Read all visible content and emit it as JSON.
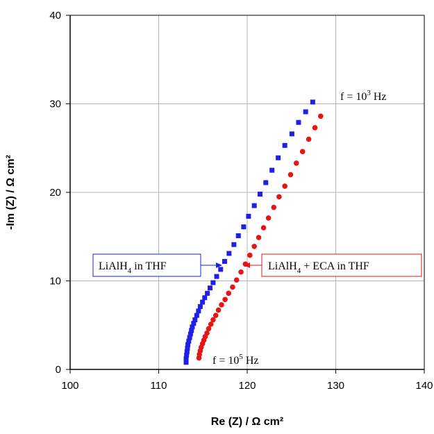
{
  "chart_data": {
    "type": "scatter",
    "xlabel": "Re (Z) / Ω cm²",
    "ylabel": "-Im (Z) / Ω cm²",
    "xlim": [
      100,
      140
    ],
    "ylim": [
      0,
      40
    ],
    "x_ticks": [
      "100",
      "110",
      "120",
      "130",
      "140"
    ],
    "y_ticks": [
      "0",
      "10",
      "20",
      "30",
      "40"
    ],
    "grid": true,
    "series": [
      {
        "name": "LiAlH4 in THF",
        "color": "#1f1fe6",
        "marker": "square",
        "x": [
          113.1,
          113.1,
          113.15,
          113.2,
          113.25,
          113.3,
          113.4,
          113.5,
          113.6,
          113.7,
          113.8,
          113.95,
          114.1,
          114.3,
          114.5,
          114.7,
          114.95,
          115.2,
          115.5,
          115.8,
          116.15,
          116.55,
          117.0,
          117.45,
          117.95,
          118.5,
          119.0,
          119.6,
          120.15,
          120.8,
          121.45,
          122.1,
          122.8,
          123.5,
          124.25,
          125.05,
          125.8,
          126.6,
          127.4
        ],
        "y": [
          0.8,
          1.2,
          1.6,
          2.0,
          2.4,
          2.8,
          3.2,
          3.6,
          4.0,
          4.4,
          4.8,
          5.2,
          5.6,
          6.1,
          6.6,
          7.1,
          7.6,
          8.1,
          8.6,
          9.2,
          9.8,
          10.5,
          11.3,
          12.2,
          13.1,
          14.1,
          15.1,
          16.1,
          17.3,
          18.5,
          19.8,
          21.1,
          22.5,
          23.9,
          25.3,
          26.6,
          27.9,
          29.1,
          30.2
        ]
      },
      {
        "name": "LiAlH4 + ECA in THF",
        "color": "#e61414",
        "marker": "circle",
        "x": [
          114.55,
          114.6,
          114.7,
          114.8,
          114.95,
          115.1,
          115.25,
          115.45,
          115.65,
          115.9,
          116.15,
          116.45,
          116.75,
          117.1,
          117.5,
          117.9,
          118.35,
          118.8,
          119.3,
          119.8,
          120.3,
          120.8,
          121.3,
          121.85,
          122.4,
          123.0,
          123.6,
          124.25,
          124.9,
          125.55,
          126.25,
          126.95,
          127.65,
          128.3
        ],
        "y": [
          1.3,
          1.7,
          2.1,
          2.5,
          2.9,
          3.3,
          3.7,
          4.1,
          4.6,
          5.1,
          5.6,
          6.1,
          6.7,
          7.3,
          7.9,
          8.6,
          9.3,
          10.1,
          11.0,
          11.9,
          12.9,
          13.9,
          14.9,
          16.0,
          17.1,
          18.3,
          19.5,
          20.7,
          22.0,
          23.3,
          24.6,
          26.0,
          27.3,
          28.6
        ]
      }
    ],
    "annotations": [
      {
        "id": "top",
        "prefix": "f = 10",
        "sup": "3",
        "suffix": " Hz"
      },
      {
        "id": "bottom",
        "prefix": "f = 10",
        "sup": "5",
        "suffix": " Hz"
      }
    ],
    "legend_boxes": [
      {
        "id": "blue",
        "main": "LiAlH",
        "sub": "4",
        "rest": " in THF",
        "color": "#1f1fe6"
      },
      {
        "id": "red",
        "main": "LiAlH",
        "sub": "4",
        "rest": " + ECA in THF",
        "color": "#e61414"
      }
    ]
  }
}
